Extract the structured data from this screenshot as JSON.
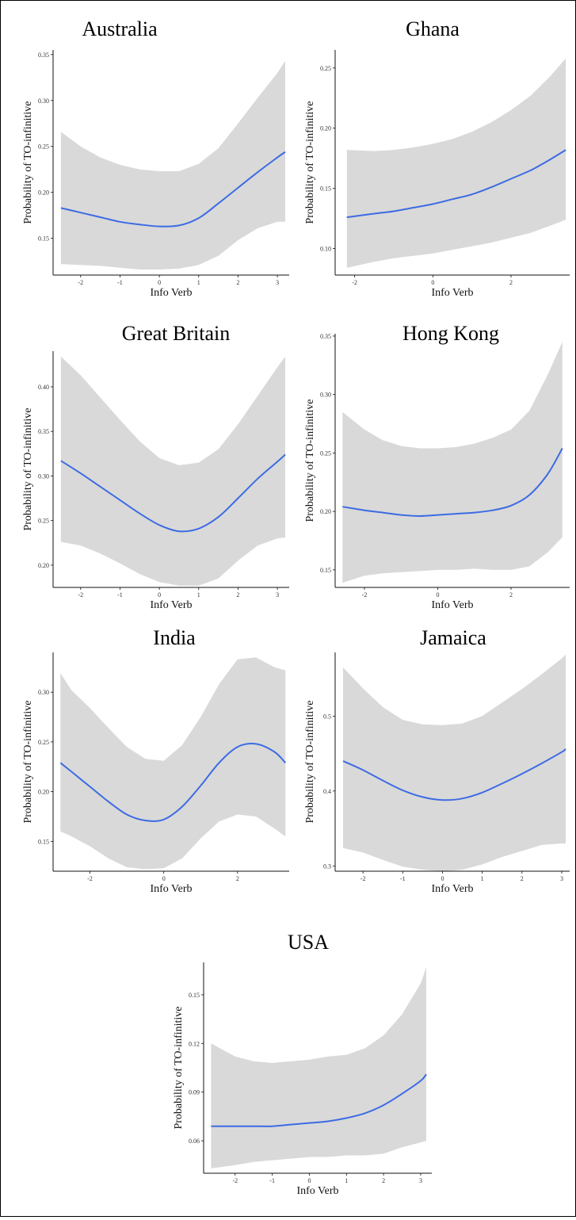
{
  "chart_data": [
    {
      "type": "line",
      "title": "Australia",
      "xlabel": "Info Verb",
      "ylabel": "Probability of TO-infinitive",
      "xlim": [
        -2.7,
        3.3
      ],
      "ylim": [
        0.11,
        0.355
      ],
      "xticks": [
        -2,
        -1,
        0,
        1,
        2,
        3
      ],
      "yticks": [
        0.15,
        0.2,
        0.25,
        0.3,
        0.35
      ],
      "ytick_labels": [
        "0.15",
        "0.20",
        "0.25",
        "0.30",
        "0.35"
      ],
      "x": [
        -2.5,
        -2,
        -1.5,
        -1,
        -0.5,
        0,
        0.5,
        1,
        1.5,
        2,
        2.5,
        3,
        3.2
      ],
      "y": [
        0.183,
        0.178,
        0.173,
        0.168,
        0.165,
        0.163,
        0.164,
        0.172,
        0.188,
        0.205,
        0.222,
        0.238,
        0.244
      ],
      "lower": [
        0.122,
        0.121,
        0.12,
        0.118,
        0.116,
        0.116,
        0.117,
        0.121,
        0.131,
        0.148,
        0.161,
        0.168,
        0.168
      ],
      "upper": [
        0.266,
        0.25,
        0.238,
        0.23,
        0.225,
        0.223,
        0.223,
        0.231,
        0.248,
        0.275,
        0.303,
        0.33,
        0.343
      ]
    },
    {
      "type": "line",
      "title": "Ghana",
      "xlabel": "Info Verb",
      "ylabel": "Probability of TO-infinitive",
      "xlim": [
        -2.5,
        3.5
      ],
      "ylim": [
        0.078,
        0.265
      ],
      "xticks": [
        -2,
        0,
        2
      ],
      "yticks": [
        0.1,
        0.15,
        0.2,
        0.25
      ],
      "ytick_labels": [
        "0.10",
        "0.15",
        "0.20",
        "0.25"
      ],
      "x": [
        -2.2,
        -1.5,
        -1,
        -0.5,
        0,
        0.5,
        1,
        1.5,
        2,
        2.5,
        3,
        3.4
      ],
      "y": [
        0.126,
        0.129,
        0.131,
        0.134,
        0.137,
        0.141,
        0.145,
        0.151,
        0.158,
        0.165,
        0.174,
        0.182
      ],
      "lower": [
        0.084,
        0.089,
        0.092,
        0.094,
        0.096,
        0.099,
        0.102,
        0.105,
        0.109,
        0.113,
        0.119,
        0.124
      ],
      "upper": [
        0.182,
        0.181,
        0.182,
        0.184,
        0.187,
        0.191,
        0.197,
        0.205,
        0.215,
        0.227,
        0.243,
        0.258
      ]
    },
    {
      "type": "line",
      "title": "Great Britain",
      "xlabel": "Info Verb",
      "ylabel": "Probability of TO-infinitive",
      "xlim": [
        -2.7,
        3.3
      ],
      "ylim": [
        0.175,
        0.44
      ],
      "xticks": [
        -2,
        -1,
        0,
        1,
        2,
        3
      ],
      "yticks": [
        0.2,
        0.25,
        0.3,
        0.35,
        0.4
      ],
      "ytick_labels": [
        "0.20",
        "0.25",
        "0.30",
        "0.35",
        "0.40"
      ],
      "x": [
        -2.5,
        -2,
        -1.5,
        -1,
        -0.5,
        0,
        0.5,
        1,
        1.5,
        2,
        2.5,
        3,
        3.2
      ],
      "y": [
        0.317,
        0.303,
        0.288,
        0.273,
        0.258,
        0.245,
        0.238,
        0.241,
        0.254,
        0.275,
        0.297,
        0.316,
        0.324
      ],
      "lower": [
        0.226,
        0.222,
        0.213,
        0.202,
        0.19,
        0.181,
        0.177,
        0.177,
        0.185,
        0.205,
        0.222,
        0.23,
        0.231
      ],
      "upper": [
        0.434,
        0.413,
        0.388,
        0.363,
        0.339,
        0.32,
        0.312,
        0.315,
        0.33,
        0.358,
        0.39,
        0.422,
        0.434
      ]
    },
    {
      "type": "line",
      "title": "Hong Kong",
      "xlabel": "Info Verb",
      "ylabel": "Probability of TO-infinitive",
      "xlim": [
        -2.8,
        3.6
      ],
      "ylim": [
        0.135,
        0.352
      ],
      "xticks": [
        -2,
        0,
        2
      ],
      "yticks": [
        0.15,
        0.2,
        0.25,
        0.3,
        0.35
      ],
      "ytick_labels": [
        "0.15",
        "0.20",
        "0.25",
        "0.30",
        "0.35"
      ],
      "x": [
        -2.6,
        -2,
        -1.5,
        -1,
        -0.5,
        0,
        0.5,
        1,
        1.5,
        2,
        2.5,
        3,
        3.4
      ],
      "y": [
        0.204,
        0.201,
        0.199,
        0.197,
        0.196,
        0.197,
        0.198,
        0.199,
        0.201,
        0.205,
        0.214,
        0.232,
        0.254
      ],
      "lower": [
        0.139,
        0.145,
        0.147,
        0.148,
        0.149,
        0.15,
        0.15,
        0.151,
        0.15,
        0.15,
        0.153,
        0.165,
        0.178
      ],
      "upper": [
        0.285,
        0.27,
        0.261,
        0.256,
        0.254,
        0.254,
        0.255,
        0.258,
        0.263,
        0.27,
        0.286,
        0.317,
        0.345
      ]
    },
    {
      "type": "line",
      "title": "India",
      "xlabel": "Info Verb",
      "ylabel": "Probability of TO-infinitive",
      "xlim": [
        -3.0,
        3.4
      ],
      "ylim": [
        0.12,
        0.34
      ],
      "xticks": [
        -2,
        0,
        2
      ],
      "yticks": [
        0.15,
        0.2,
        0.25,
        0.3
      ],
      "ytick_labels": [
        "0.15",
        "0.20",
        "0.25",
        "0.30"
      ],
      "x": [
        -2.8,
        -2.5,
        -2,
        -1.5,
        -1,
        -0.5,
        0,
        0.5,
        1,
        1.5,
        2,
        2.5,
        3,
        3.3
      ],
      "y": [
        0.229,
        0.22,
        0.205,
        0.19,
        0.177,
        0.171,
        0.172,
        0.185,
        0.206,
        0.229,
        0.245,
        0.248,
        0.24,
        0.229
      ],
      "lower": [
        0.16,
        0.155,
        0.145,
        0.133,
        0.124,
        0.122,
        0.123,
        0.133,
        0.153,
        0.17,
        0.177,
        0.175,
        0.163,
        0.155
      ],
      "upper": [
        0.319,
        0.302,
        0.284,
        0.264,
        0.245,
        0.233,
        0.231,
        0.247,
        0.275,
        0.308,
        0.333,
        0.335,
        0.325,
        0.322
      ]
    },
    {
      "type": "line",
      "title": "Jamaica",
      "xlabel": "Info Verb",
      "ylabel": "Probability of TO-infinitive",
      "xlim": [
        -2.7,
        3.2
      ],
      "ylim": [
        0.293,
        0.585
      ],
      "xticks": [
        -2,
        -1,
        0,
        1,
        2,
        3
      ],
      "yticks": [
        0.3,
        0.4,
        0.5
      ],
      "ytick_labels": [
        "0.3",
        "0.4",
        "0.5"
      ],
      "x": [
        -2.5,
        -2,
        -1.5,
        -1,
        -0.5,
        0,
        0.5,
        1,
        1.5,
        2,
        2.5,
        3,
        3.1
      ],
      "y": [
        0.44,
        0.428,
        0.414,
        0.401,
        0.392,
        0.388,
        0.39,
        0.398,
        0.41,
        0.423,
        0.437,
        0.452,
        0.456
      ],
      "lower": [
        0.324,
        0.318,
        0.308,
        0.299,
        0.295,
        0.293,
        0.295,
        0.302,
        0.312,
        0.32,
        0.328,
        0.33,
        0.33
      ],
      "upper": [
        0.565,
        0.537,
        0.512,
        0.495,
        0.489,
        0.488,
        0.49,
        0.5,
        0.518,
        0.536,
        0.556,
        0.577,
        0.582
      ]
    },
    {
      "type": "line",
      "title": "USA",
      "xlabel": "Info Verb",
      "ylabel": "Probability of TO-infinitive",
      "xlim": [
        -2.85,
        3.3
      ],
      "ylim": [
        0.04,
        0.17
      ],
      "xticks": [
        -2,
        -1,
        0,
        1,
        2,
        3
      ],
      "yticks": [
        0.06,
        0.09,
        0.12,
        0.15
      ],
      "ytick_labels": [
        "0.06",
        "0.09",
        "0.12",
        "0.15"
      ],
      "x": [
        -2.65,
        -2,
        -1.5,
        -1,
        -0.5,
        0,
        0.5,
        1,
        1.5,
        2,
        2.5,
        3,
        3.15
      ],
      "y": [
        0.069,
        0.069,
        0.069,
        0.069,
        0.07,
        0.071,
        0.072,
        0.074,
        0.077,
        0.082,
        0.089,
        0.097,
        0.101
      ],
      "lower": [
        0.043,
        0.045,
        0.047,
        0.048,
        0.049,
        0.05,
        0.05,
        0.051,
        0.051,
        0.052,
        0.056,
        0.059,
        0.06
      ],
      "upper": [
        0.12,
        0.112,
        0.109,
        0.108,
        0.109,
        0.11,
        0.112,
        0.113,
        0.117,
        0.125,
        0.138,
        0.157,
        0.167
      ]
    }
  ],
  "style": {
    "line_color": "#3c6be3",
    "band_color": "#d9d9d9",
    "grid": false
  }
}
